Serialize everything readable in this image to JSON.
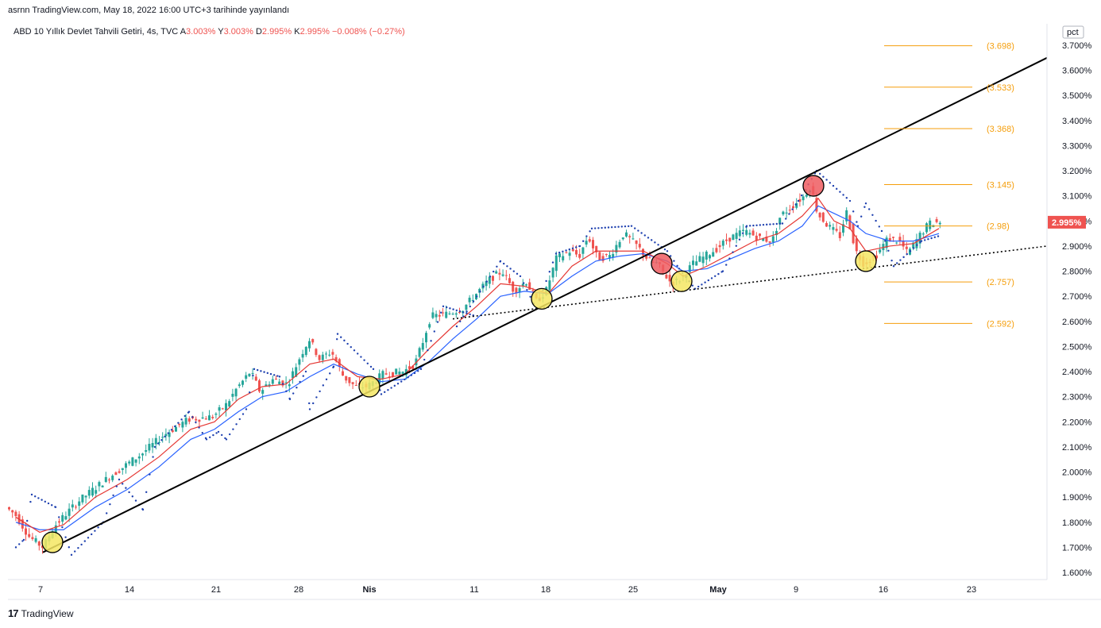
{
  "header": {
    "publisher": "asrnn TradingView.com, May 18, 2022 16:00 UTC+3 tarihinde yayınlandı"
  },
  "legend": {
    "symbol": "ABD 10 Yıllık Devlet Tahvili Getiri, 4s, TVC",
    "a_label": "A",
    "a_value": "3.003%",
    "y_label": "Y",
    "y_value": "3.003%",
    "d_label": "D",
    "d_value": "2.995%",
    "k_label": "K",
    "k_value": "2.995%",
    "change": "−0.008% (−0.27%)"
  },
  "footer": {
    "logo": "17",
    "brand": "TradingView"
  },
  "colors": {
    "up": "#26a69a",
    "down": "#ef5350",
    "ema_fast": "#e53935",
    "ema_slow": "#2962ff",
    "psar": "#1e40af",
    "fib": "#f59e0b",
    "trend": "#000000",
    "marker_bull": "#f5e663",
    "marker_bear": "#ef5c60"
  },
  "chart_data": {
    "type": "candlestick",
    "title": "ABD 10 Yıllık Devlet Tahvili Getiri, 4s, TVC",
    "unit": "pct",
    "ylim": [
      1.6,
      3.7
    ],
    "y_ticks": [
      "3.700%",
      "3.600%",
      "3.500%",
      "3.400%",
      "3.300%",
      "3.200%",
      "3.100%",
      "3.000%",
      "2.900%",
      "2.800%",
      "2.700%",
      "2.600%",
      "2.500%",
      "2.400%",
      "2.300%",
      "2.200%",
      "2.100%",
      "2.000%",
      "1.900%",
      "1.800%",
      "1.700%",
      "1.600%"
    ],
    "x_ticks": [
      "7",
      "14",
      "21",
      "28",
      "Nis",
      "11",
      "18",
      "25",
      "May",
      "9",
      "16",
      "23"
    ],
    "last_price_label": "2.995%",
    "path": [
      [
        0,
        1.86
      ],
      [
        12,
        1.83
      ],
      [
        30,
        1.74
      ],
      [
        47,
        1.7
      ],
      [
        60,
        1.78
      ],
      [
        90,
        1.88
      ],
      [
        130,
        1.98
      ],
      [
        170,
        2.07
      ],
      [
        200,
        2.15
      ],
      [
        230,
        2.21
      ],
      [
        260,
        2.22
      ],
      [
        278,
        2.27
      ],
      [
        290,
        2.33
      ],
      [
        308,
        2.4
      ],
      [
        320,
        2.32
      ],
      [
        335,
        2.37
      ],
      [
        355,
        2.35
      ],
      [
        372,
        2.47
      ],
      [
        382,
        2.53
      ],
      [
        395,
        2.45
      ],
      [
        410,
        2.48
      ],
      [
        425,
        2.38
      ],
      [
        440,
        2.34
      ],
      [
        455,
        2.34
      ],
      [
        475,
        2.39
      ],
      [
        500,
        2.4
      ],
      [
        515,
        2.43
      ],
      [
        525,
        2.52
      ],
      [
        535,
        2.62
      ],
      [
        555,
        2.63
      ],
      [
        575,
        2.65
      ],
      [
        595,
        2.72
      ],
      [
        610,
        2.77
      ],
      [
        625,
        2.8
      ],
      [
        640,
        2.72
      ],
      [
        655,
        2.76
      ],
      [
        668,
        2.68
      ],
      [
        680,
        2.72
      ],
      [
        693,
        2.85
      ],
      [
        710,
        2.88
      ],
      [
        722,
        2.86
      ],
      [
        733,
        2.94
      ],
      [
        745,
        2.85
      ],
      [
        760,
        2.86
      ],
      [
        778,
        2.95
      ],
      [
        795,
        2.9
      ],
      [
        810,
        2.84
      ],
      [
        820,
        2.83
      ],
      [
        838,
        2.75
      ],
      [
        850,
        2.77
      ],
      [
        865,
        2.83
      ],
      [
        880,
        2.86
      ],
      [
        895,
        2.89
      ],
      [
        910,
        2.93
      ],
      [
        930,
        2.96
      ],
      [
        950,
        2.93
      ],
      [
        965,
        2.92
      ],
      [
        975,
        3.02
      ],
      [
        990,
        3.06
      ],
      [
        1005,
        3.1
      ],
      [
        1013,
        3.14
      ],
      [
        1022,
        3.03
      ],
      [
        1035,
        2.98
      ],
      [
        1050,
        2.94
      ],
      [
        1058,
        3.04
      ],
      [
        1070,
        2.88
      ],
      [
        1080,
        2.83
      ],
      [
        1095,
        2.86
      ],
      [
        1110,
        2.93
      ],
      [
        1125,
        2.92
      ],
      [
        1135,
        2.87
      ],
      [
        1150,
        2.94
      ],
      [
        1162,
        2.99
      ],
      [
        1172,
        2.995
      ]
    ],
    "ema_fast": [
      [
        10,
        1.82
      ],
      [
        40,
        1.76
      ],
      [
        70,
        1.79
      ],
      [
        110,
        1.9
      ],
      [
        150,
        1.97
      ],
      [
        190,
        2.06
      ],
      [
        230,
        2.17
      ],
      [
        260,
        2.2
      ],
      [
        290,
        2.29
      ],
      [
        320,
        2.34
      ],
      [
        350,
        2.35
      ],
      [
        380,
        2.43
      ],
      [
        410,
        2.45
      ],
      [
        440,
        2.38
      ],
      [
        470,
        2.37
      ],
      [
        500,
        2.39
      ],
      [
        530,
        2.49
      ],
      [
        560,
        2.58
      ],
      [
        590,
        2.66
      ],
      [
        620,
        2.75
      ],
      [
        650,
        2.74
      ],
      [
        680,
        2.71
      ],
      [
        710,
        2.82
      ],
      [
        740,
        2.88
      ],
      [
        770,
        2.88
      ],
      [
        800,
        2.88
      ],
      [
        830,
        2.83
      ],
      [
        850,
        2.78
      ],
      [
        880,
        2.82
      ],
      [
        910,
        2.87
      ],
      [
        940,
        2.92
      ],
      [
        970,
        2.95
      ],
      [
        1000,
        3.02
      ],
      [
        1020,
        3.09
      ],
      [
        1040,
        3.0
      ],
      [
        1060,
        2.97
      ],
      [
        1080,
        2.88
      ],
      [
        1110,
        2.9
      ],
      [
        1140,
        2.91
      ],
      [
        1172,
        2.97
      ]
    ],
    "ema_slow": [
      [
        10,
        1.8
      ],
      [
        40,
        1.77
      ],
      [
        70,
        1.77
      ],
      [
        110,
        1.86
      ],
      [
        150,
        1.93
      ],
      [
        190,
        2.02
      ],
      [
        230,
        2.13
      ],
      [
        260,
        2.17
      ],
      [
        290,
        2.24
      ],
      [
        320,
        2.3
      ],
      [
        350,
        2.32
      ],
      [
        380,
        2.38
      ],
      [
        410,
        2.43
      ],
      [
        440,
        2.39
      ],
      [
        470,
        2.36
      ],
      [
        500,
        2.37
      ],
      [
        530,
        2.44
      ],
      [
        560,
        2.53
      ],
      [
        590,
        2.61
      ],
      [
        620,
        2.7
      ],
      [
        650,
        2.72
      ],
      [
        680,
        2.71
      ],
      [
        710,
        2.78
      ],
      [
        740,
        2.84
      ],
      [
        770,
        2.86
      ],
      [
        800,
        2.87
      ],
      [
        830,
        2.84
      ],
      [
        850,
        2.8
      ],
      [
        880,
        2.81
      ],
      [
        910,
        2.85
      ],
      [
        940,
        2.89
      ],
      [
        970,
        2.92
      ],
      [
        1000,
        2.98
      ],
      [
        1020,
        3.06
      ],
      [
        1040,
        3.03
      ],
      [
        1060,
        3.0
      ],
      [
        1080,
        2.95
      ],
      [
        1110,
        2.92
      ],
      [
        1140,
        2.92
      ],
      [
        1172,
        2.95
      ]
    ],
    "psar": [
      [
        10,
        1.7
      ],
      [
        20,
        1.73
      ],
      [
        30,
        1.91
      ],
      [
        60,
        1.86
      ],
      [
        80,
        1.67
      ],
      [
        120,
        1.8
      ],
      [
        140,
        1.97
      ],
      [
        170,
        1.85
      ],
      [
        185,
        2.1
      ],
      [
        228,
        2.24
      ],
      [
        250,
        2.13
      ],
      [
        265,
        2.16
      ],
      [
        275,
        2.13
      ],
      [
        300,
        2.25
      ],
      [
        310,
        2.41
      ],
      [
        342,
        2.38
      ],
      [
        355,
        2.29
      ],
      [
        375,
        2.4
      ],
      [
        380,
        2.25
      ],
      [
        410,
        2.42
      ],
      [
        415,
        2.55
      ],
      [
        460,
        2.41
      ],
      [
        470,
        2.31
      ],
      [
        520,
        2.41
      ],
      [
        548,
        2.66
      ],
      [
        590,
        2.62
      ],
      [
        565,
        2.58
      ],
      [
        620,
        2.84
      ],
      [
        645,
        2.78
      ],
      [
        665,
        2.65
      ],
      [
        690,
        2.87
      ],
      [
        720,
        2.9
      ],
      [
        735,
        2.97
      ],
      [
        785,
        2.98
      ],
      [
        830,
        2.88
      ],
      [
        845,
        2.81
      ],
      [
        865,
        2.73
      ],
      [
        900,
        2.8
      ],
      [
        930,
        2.98
      ],
      [
        975,
        2.99
      ],
      [
        995,
        3.08
      ],
      [
        1018,
        3.2
      ],
      [
        1060,
        3.08
      ],
      [
        1070,
        2.98
      ],
      [
        1080,
        3.07
      ],
      [
        1100,
        2.96
      ],
      [
        1115,
        2.82
      ],
      [
        1150,
        2.92
      ],
      [
        1172,
        2.94
      ]
    ],
    "fib_levels": [
      {
        "label": "(3.698)",
        "value": 3.698
      },
      {
        "label": "(3.533)",
        "value": 3.533
      },
      {
        "label": "(3.368)",
        "value": 3.368
      },
      {
        "label": "(3.145)",
        "value": 3.145
      },
      {
        "label": "(2.98)",
        "value": 2.98
      },
      {
        "label": "(2.757)",
        "value": 2.757
      },
      {
        "label": "(2.592)",
        "value": 2.592
      }
    ],
    "trendlines": [
      {
        "style": "solid",
        "from": [
          44,
          1.68
        ],
        "to": [
          1318,
          3.65
        ]
      },
      {
        "style": "dotted",
        "from": [
          560,
          2.61
        ],
        "to": [
          1318,
          2.9
        ]
      }
    ],
    "markers": [
      {
        "kind": "bull",
        "x": 56,
        "y": 1.72
      },
      {
        "kind": "bull",
        "x": 455,
        "y": 2.34
      },
      {
        "kind": "bull",
        "x": 672,
        "y": 2.69
      },
      {
        "kind": "bear",
        "x": 823,
        "y": 2.83
      },
      {
        "kind": "bull",
        "x": 848,
        "y": 2.76
      },
      {
        "kind": "bear",
        "x": 1014,
        "y": 3.14
      },
      {
        "kind": "bull",
        "x": 1080,
        "y": 2.84
      }
    ]
  }
}
